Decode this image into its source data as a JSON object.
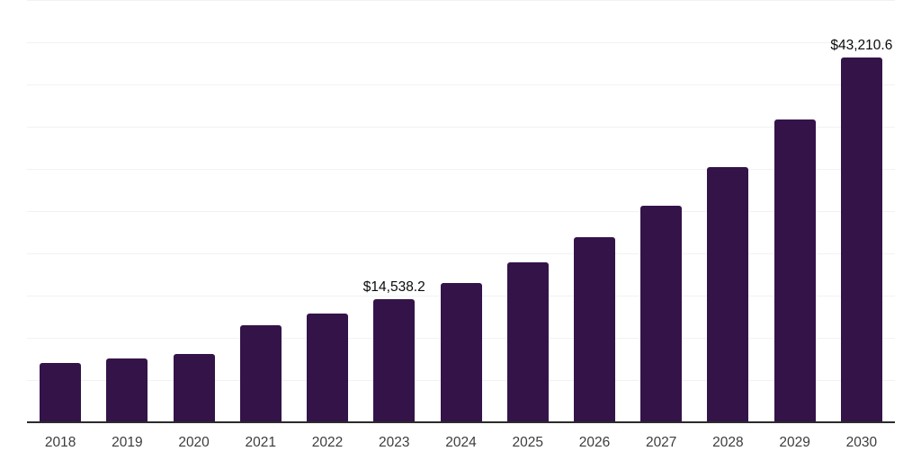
{
  "chart": {
    "background_color": "#ffffff",
    "bar_color": "#341349",
    "gridline_color": "#f2f2f2",
    "axis_line_color": "#2b2b2b",
    "tick_label_color": "#3d3d3d",
    "data_label_color": "#0a0a0a"
  },
  "chart_data": {
    "type": "bar",
    "title": "",
    "xlabel": "",
    "ylabel": "",
    "categories": [
      "2018",
      "2019",
      "2020",
      "2021",
      "2022",
      "2023",
      "2024",
      "2025",
      "2026",
      "2027",
      "2028",
      "2029",
      "2030"
    ],
    "values": [
      7020,
      7550,
      8080,
      11450,
      12860,
      14538.2,
      16450,
      18890,
      21870,
      25590,
      30160,
      35900,
      43210.6
    ],
    "point_labels": [
      "",
      "",
      "",
      "",
      "",
      "$14,538.2",
      "",
      "",
      "",
      "",
      "",
      "",
      "$43,210.6"
    ],
    "ylim": [
      0,
      50000
    ],
    "grid_step": 5000,
    "grid": "horizontal",
    "y_tick_labels_visible": false,
    "legend_position": "none"
  }
}
